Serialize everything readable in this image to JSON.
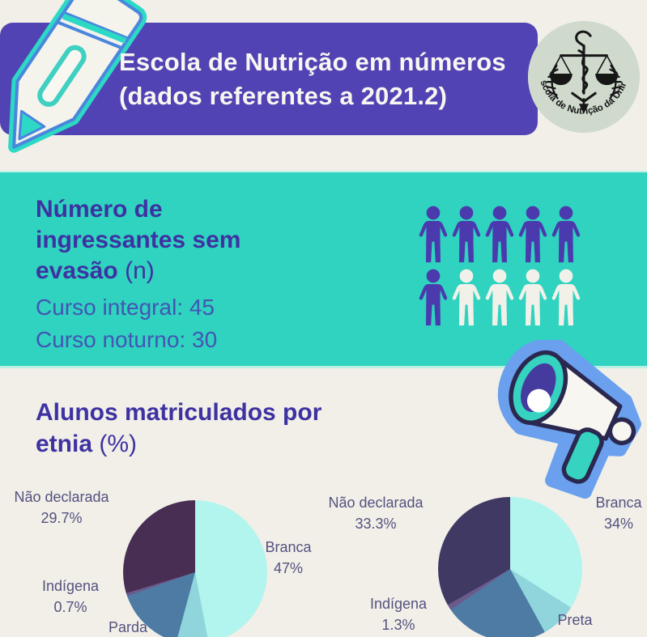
{
  "page": {
    "bg_color": "#f1efe8"
  },
  "header": {
    "band_color": "#5143b3",
    "title_line1": "Escola de Nutrição em números",
    "title_line2": "(dados referentes a 2021.2)",
    "seal": {
      "bg_color": "#cfdacd",
      "caption": "Escola de Nutrição da Unirio"
    }
  },
  "ingressantes": {
    "band_color": "#2fd3bf",
    "heading": "Número de ingressantes sem evasão",
    "heading_suffix": "(n)",
    "stat_integral": "Curso integral: 45",
    "stat_noturno": "Curso noturno: 30",
    "pictogram": {
      "total": 10,
      "filled": 6,
      "per_row": 5,
      "filled_color": "#4b39ae",
      "empty_color": "#f2f1e9"
    }
  },
  "etnia": {
    "heading": "Alunos matriculados por etnia",
    "heading_suffix": "(%)"
  },
  "chart_data": [
    {
      "type": "pie",
      "name": "alunos-matriculados-por-etnia-pie-esquerda",
      "order": "clockwise-from-top",
      "slices": [
        {
          "label": "Branca",
          "value": 47.0,
          "color": "#b2f4ee"
        },
        {
          "label": "Preta",
          "value": 7.2,
          "color": "#8fd5db"
        },
        {
          "label": "Parda",
          "value": 15.4,
          "color": "#4e7ba4"
        },
        {
          "label": "Indígena",
          "value": 0.7,
          "color": "#6b5a8c"
        },
        {
          "label": "Não declarada",
          "value": 29.7,
          "color": "#472e52"
        }
      ],
      "callouts": [
        {
          "name": "Não declarada",
          "pct": "29.7%"
        },
        {
          "name": "Indígena",
          "pct": "0.7%"
        },
        {
          "name": "Parda",
          "pct": ""
        },
        {
          "name": "Branca",
          "pct": "47%"
        }
      ]
    },
    {
      "type": "pie",
      "name": "alunos-matriculados-por-etnia-pie-direita",
      "order": "clockwise-from-top",
      "slices": [
        {
          "label": "Branca",
          "value": 34.0,
          "color": "#b2f4ee"
        },
        {
          "label": "Preta",
          "value": 8.0,
          "color": "#8fd5db"
        },
        {
          "label": "Parda",
          "value": 23.4,
          "color": "#4e7ba4"
        },
        {
          "label": "Indígena",
          "value": 1.3,
          "color": "#6b5a8c"
        },
        {
          "label": "Não declarada",
          "value": 33.3,
          "color": "#3f3963"
        }
      ],
      "callouts": [
        {
          "name": "Não declarada",
          "pct": "33.3%"
        },
        {
          "name": "Branca",
          "pct": "34%"
        },
        {
          "name": "Indígena",
          "pct": "1.3%"
        },
        {
          "name": "Preta",
          "pct": ""
        }
      ]
    }
  ]
}
